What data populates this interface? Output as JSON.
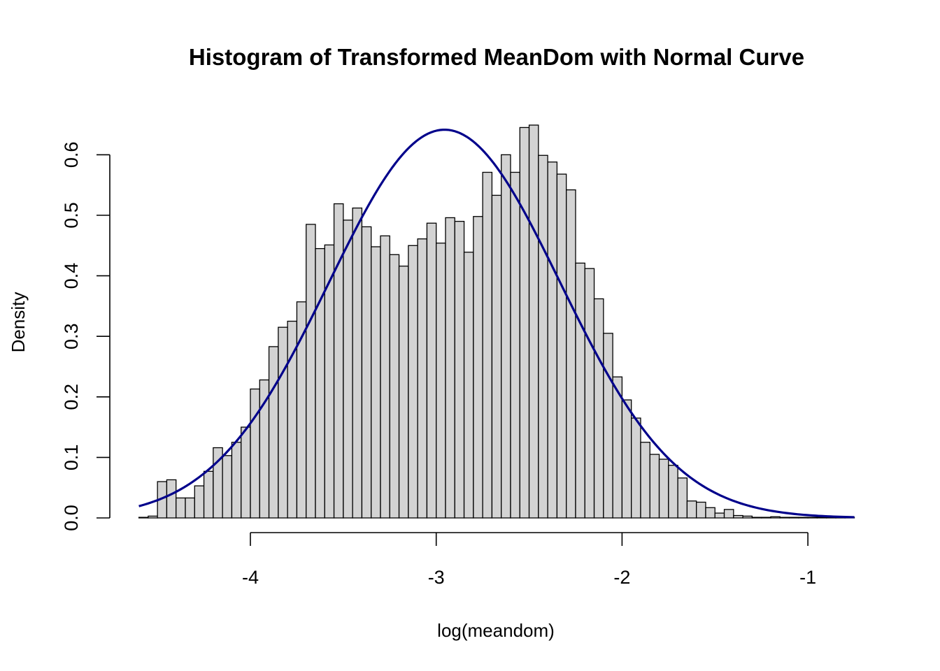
{
  "chart_data": {
    "type": "bar",
    "title": "Histogram of Transformed MeanDom with Normal Curve",
    "xlabel": "log(meandom)",
    "ylabel": "Density",
    "xlim": [
      -4.6,
      -0.75
    ],
    "ylim": [
      0,
      0.65
    ],
    "x_ticks": [
      -4,
      -3,
      -2,
      -1
    ],
    "x_tick_labels": [
      "-4",
      "-3",
      "-2",
      "-1"
    ],
    "y_ticks": [
      0.0,
      0.1,
      0.2,
      0.3,
      0.4,
      0.5,
      0.6
    ],
    "y_tick_labels": [
      "0.0",
      "0.1",
      "0.2",
      "0.3",
      "0.4",
      "0.5",
      "0.6"
    ],
    "bin_width": 0.05,
    "bins_start": [
      -4.6,
      -4.55,
      -4.5,
      -4.45,
      -4.4,
      -4.35,
      -4.3,
      -4.25,
      -4.2,
      -4.15,
      -4.1,
      -4.05,
      -4.0,
      -3.95,
      -3.9,
      -3.85,
      -3.8,
      -3.75,
      -3.7,
      -3.65,
      -3.6,
      -3.55,
      -3.5,
      -3.45,
      -3.4,
      -3.35,
      -3.3,
      -3.25,
      -3.2,
      -3.15,
      -3.1,
      -3.05,
      -3.0,
      -2.95,
      -2.9,
      -2.85,
      -2.8,
      -2.75,
      -2.7,
      -2.65,
      -2.6,
      -2.55,
      -2.5,
      -2.45,
      -2.4,
      -2.35,
      -2.3,
      -2.25,
      -2.2,
      -2.15,
      -2.1,
      -2.05,
      -2.0,
      -1.95,
      -1.9,
      -1.85,
      -1.8,
      -1.75,
      -1.7,
      -1.65,
      -1.6,
      -1.55,
      -1.5,
      -1.45,
      -1.4,
      -1.35,
      -1.3,
      -1.25,
      -1.2,
      -1.15,
      -1.1,
      -1.05,
      -1.0,
      -0.95,
      -0.9,
      -0.85,
      -0.8
    ],
    "values": [
      0.001,
      0.003,
      0.06,
      0.063,
      0.033,
      0.033,
      0.053,
      0.077,
      0.116,
      0.103,
      0.125,
      0.15,
      0.213,
      0.228,
      0.283,
      0.315,
      0.325,
      0.357,
      0.485,
      0.445,
      0.451,
      0.519,
      0.492,
      0.512,
      0.481,
      0.448,
      0.466,
      0.435,
      0.416,
      0.45,
      0.461,
      0.487,
      0.454,
      0.496,
      0.49,
      0.439,
      0.498,
      0.571,
      0.533,
      0.6,
      0.571,
      0.645,
      0.649,
      0.599,
      0.588,
      0.568,
      0.542,
      0.421,
      0.412,
      0.362,
      0.305,
      0.233,
      0.195,
      0.165,
      0.125,
      0.105,
      0.097,
      0.087,
      0.066,
      0.028,
      0.026,
      0.017,
      0.008,
      0.014,
      0.004,
      0.003,
      0.001,
      0.001,
      0.002,
      0.001,
      0.001,
      0.001,
      0.001,
      0.001,
      0.001,
      0.001,
      0.001
    ],
    "series": [
      {
        "type": "line",
        "mean": -2.955,
        "sd": 0.622
      }
    ],
    "bar_fill": "#d3d3d3",
    "bar_stroke": "#000000",
    "curve_color": "#00008b",
    "grid": false,
    "legend": "none"
  }
}
